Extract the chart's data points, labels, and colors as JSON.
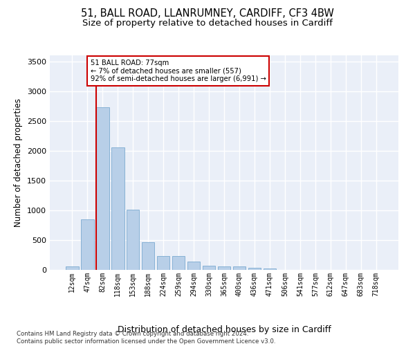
{
  "title": "51, BALL ROAD, LLANRUMNEY, CARDIFF, CF3 4BW",
  "subtitle": "Size of property relative to detached houses in Cardiff",
  "xlabel": "Distribution of detached houses by size in Cardiff",
  "ylabel": "Number of detached properties",
  "categories": [
    "12sqm",
    "47sqm",
    "82sqm",
    "118sqm",
    "153sqm",
    "188sqm",
    "224sqm",
    "259sqm",
    "294sqm",
    "330sqm",
    "365sqm",
    "400sqm",
    "436sqm",
    "471sqm",
    "506sqm",
    "541sqm",
    "577sqm",
    "612sqm",
    "647sqm",
    "683sqm",
    "718sqm"
  ],
  "values": [
    60,
    850,
    2730,
    2060,
    1010,
    460,
    230,
    230,
    140,
    65,
    55,
    55,
    30,
    25,
    0,
    0,
    0,
    0,
    0,
    0,
    0
  ],
  "bar_color": "#b8cfe8",
  "bar_edge_color": "#7aaad0",
  "bg_color": "#eaeff8",
  "grid_color": "#ffffff",
  "vline_color": "#cc0000",
  "annotation_text": "51 BALL ROAD: 77sqm\n← 7% of detached houses are smaller (557)\n92% of semi-detached houses are larger (6,991) →",
  "annotation_box_color": "#cc0000",
  "ylim": [
    0,
    3600
  ],
  "yticks": [
    0,
    500,
    1000,
    1500,
    2000,
    2500,
    3000,
    3500
  ],
  "footer": "Contains HM Land Registry data © Crown copyright and database right 2024.\nContains public sector information licensed under the Open Government Licence v3.0.",
  "title_fontsize": 10.5,
  "subtitle_fontsize": 9.5,
  "xlabel_fontsize": 9,
  "ylabel_fontsize": 8.5
}
